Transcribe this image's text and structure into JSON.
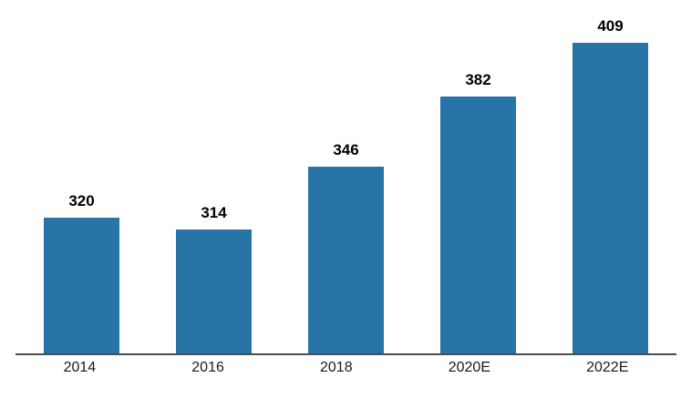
{
  "chart_data": {
    "type": "bar",
    "title": "",
    "xlabel": "",
    "ylabel": "",
    "categories": [
      "2014",
      "2016",
      "2018",
      "2020E",
      "2022E"
    ],
    "values": [
      320,
      314,
      346,
      382,
      409
    ],
    "data_labels": [
      "320",
      "314",
      "346",
      "382",
      "409"
    ],
    "ylim": [
      251,
      430
    ],
    "grid": false,
    "legend": false,
    "y_axis_visible": false,
    "colors": {
      "bar_fill": "#2874A6",
      "axis_line": "#4d4d4d",
      "data_label_text": "#000000",
      "tick_label_text": "#1a1a1a",
      "background": "#ffffff"
    }
  }
}
